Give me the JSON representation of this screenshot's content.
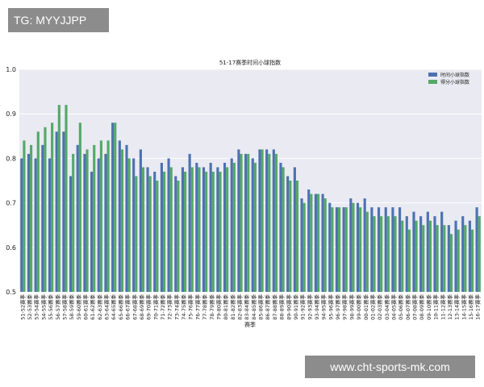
{
  "tag_text": "TG: MYYJJPP",
  "watermark_text": "www.cht-sports-mk.com",
  "chart_data": {
    "type": "bar",
    "title": "51-17赛季时间小球指数",
    "xlabel": "赛季",
    "ylabel": "",
    "ylim": [
      0.5,
      1.0
    ],
    "yticks": [
      "0.5",
      "0.6",
      "0.7",
      "0.8",
      "0.9",
      "1.0"
    ],
    "grid": true,
    "legend_position": "top-right",
    "categories": [
      "51-52赛季",
      "52-53赛季",
      "53-54赛季",
      "54-55赛季",
      "55-56赛季",
      "56-57赛季",
      "57-58赛季",
      "58-59赛季",
      "59-60赛季",
      "60-61赛季",
      "61-62赛季",
      "62-63赛季",
      "63-64赛季",
      "64-65赛季",
      "65-66赛季",
      "66-67赛季",
      "67-68赛季",
      "68-69赛季",
      "69-70赛季",
      "70-71赛季",
      "71-72赛季",
      "72-73赛季",
      "73-74赛季",
      "74-75赛季",
      "75-76赛季",
      "76-77赛季",
      "77-78赛季",
      "78-79赛季",
      "79-80赛季",
      "80-81赛季",
      "81-82赛季",
      "82-83赛季",
      "83-84赛季",
      "84-85赛季",
      "85-86赛季",
      "86-87赛季",
      "87-88赛季",
      "88-89赛季",
      "89-90赛季",
      "90-91赛季",
      "91-92赛季",
      "92-93赛季",
      "93-94赛季",
      "94-95赛季",
      "95-96赛季",
      "96-97赛季",
      "97-98赛季",
      "98-99赛季",
      "99-00赛季",
      "00-01赛季",
      "01-02赛季",
      "02-03赛季",
      "03-04赛季",
      "04-05赛季",
      "05-06赛季",
      "06-07赛季",
      "07-08赛季",
      "08-09赛季",
      "09-10赛季",
      "10-11赛季",
      "11-12赛季",
      "12-13赛季",
      "13-14赛季",
      "14-15赛季",
      "15-16赛季",
      "16-17赛季"
    ],
    "series": [
      {
        "name": "时间小球指数",
        "color": "#4c72b0",
        "values": [
          0.8,
          0.81,
          0.8,
          0.83,
          0.8,
          0.86,
          0.86,
          0.76,
          0.83,
          0.81,
          0.77,
          0.8,
          0.81,
          0.88,
          0.84,
          0.83,
          0.8,
          0.82,
          0.78,
          0.77,
          0.79,
          0.8,
          0.76,
          0.78,
          0.81,
          0.79,
          0.78,
          0.79,
          0.78,
          0.79,
          0.8,
          0.82,
          0.81,
          0.8,
          0.82,
          0.82,
          0.82,
          0.79,
          0.76,
          0.78,
          0.71,
          0.73,
          0.72,
          0.72,
          0.7,
          0.69,
          0.69,
          0.71,
          0.7,
          0.71,
          0.69,
          0.69,
          0.69,
          0.69,
          0.69,
          0.67,
          0.68,
          0.67,
          0.68,
          0.67,
          0.68,
          0.65,
          0.66,
          0.67,
          0.66,
          0.69
        ]
      },
      {
        "name": "得分小球指数",
        "color": "#55a868",
        "values": [
          0.84,
          0.83,
          0.86,
          0.87,
          0.88,
          0.92,
          0.92,
          0.81,
          0.88,
          0.82,
          0.83,
          0.84,
          0.84,
          0.88,
          0.82,
          0.8,
          0.76,
          0.78,
          0.76,
          0.75,
          0.77,
          0.78,
          0.75,
          0.77,
          0.78,
          0.78,
          0.77,
          0.77,
          0.77,
          0.78,
          0.79,
          0.81,
          0.81,
          0.79,
          0.82,
          0.81,
          0.81,
          0.78,
          0.75,
          0.75,
          0.7,
          0.72,
          0.72,
          0.71,
          0.69,
          0.69,
          0.69,
          0.7,
          0.69,
          0.68,
          0.67,
          0.67,
          0.67,
          0.67,
          0.66,
          0.64,
          0.66,
          0.65,
          0.66,
          0.65,
          0.65,
          0.63,
          0.64,
          0.65,
          0.64,
          0.67
        ]
      }
    ]
  }
}
